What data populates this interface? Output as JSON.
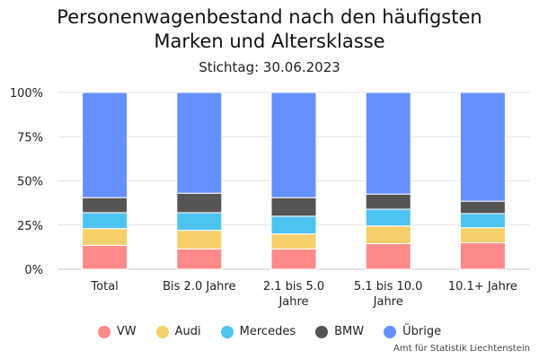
{
  "chart_data": {
    "type": "bar",
    "stacked": true,
    "normalized": true,
    "title": "Personenwagenbestand nach den häufigsten Marken und Altersklasse",
    "subtitle": "Stichtag: 30.06.2023",
    "categories": [
      [
        "Total"
      ],
      [
        "Bis 2.0 Jahre"
      ],
      [
        "2.1 bis 5.0",
        "Jahre"
      ],
      [
        "5.1 bis 10.0",
        "Jahre"
      ],
      [
        "10.1+ Jahre"
      ]
    ],
    "y_ticks": [
      "0%",
      "25%",
      "50%",
      "75%",
      "100%"
    ],
    "ylim": [
      0,
      100
    ],
    "grid": true,
    "legend_position": "bottom",
    "series": [
      {
        "name": "VW",
        "color": "#ff8a8a",
        "values": [
          13.5,
          11.5,
          11.5,
          14.5,
          15.0
        ]
      },
      {
        "name": "Audi",
        "color": "#f5cf6a",
        "values": [
          9.5,
          10.5,
          8.5,
          10.0,
          8.5
        ]
      },
      {
        "name": "Mercedes",
        "color": "#4dc3ef",
        "values": [
          9.0,
          10.0,
          10.0,
          9.5,
          8.0
        ]
      },
      {
        "name": "BMW",
        "color": "#555555",
        "values": [
          8.5,
          11.0,
          10.5,
          8.5,
          7.0
        ]
      },
      {
        "name": "Übrige",
        "color": "#6690ff",
        "values": [
          59.5,
          57.0,
          59.5,
          57.5,
          61.5
        ]
      }
    ]
  },
  "source": "Amt für Statistik Liechtenstein"
}
